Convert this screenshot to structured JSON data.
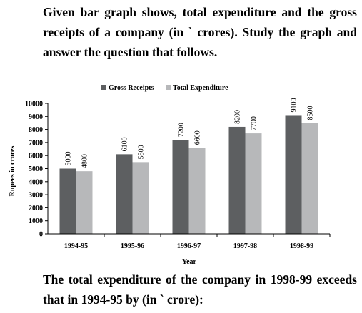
{
  "intro_text": "Given bar graph shows, total expenditure and the gross receipts of a company (in ` crores). Study the graph and answer the question that follows.",
  "question_text": "The total expenditure of the company in 1998-99 exceeds that in 1994-95 by (in ` crore):",
  "chart_data": {
    "type": "bar",
    "categories": [
      "1994-95",
      "1995-96",
      "1996-97",
      "1997-98",
      "1998-99"
    ],
    "series": [
      {
        "name": "Gross Receipts",
        "values": [
          5000,
          6100,
          7200,
          8200,
          9100
        ],
        "color": "#5d5f61"
      },
      {
        "name": "Total Expenditure",
        "values": [
          4800,
          5500,
          6600,
          7700,
          8500
        ],
        "color": "#b7b8ba"
      }
    ],
    "data_labels": [
      [
        "5000",
        "6100",
        "7200",
        "8200",
        "9100"
      ],
      [
        "4800",
        "5500",
        "6600",
        "7700",
        "8500"
      ]
    ],
    "xlabel": "Year",
    "ylabel": "Rupees in crores",
    "ylim": [
      0,
      10000
    ],
    "yticks": [
      0,
      1000,
      2000,
      3000,
      4000,
      5000,
      6000,
      7000,
      8000,
      9000,
      10000
    ],
    "legend_position": "top-center",
    "grid": false
  }
}
